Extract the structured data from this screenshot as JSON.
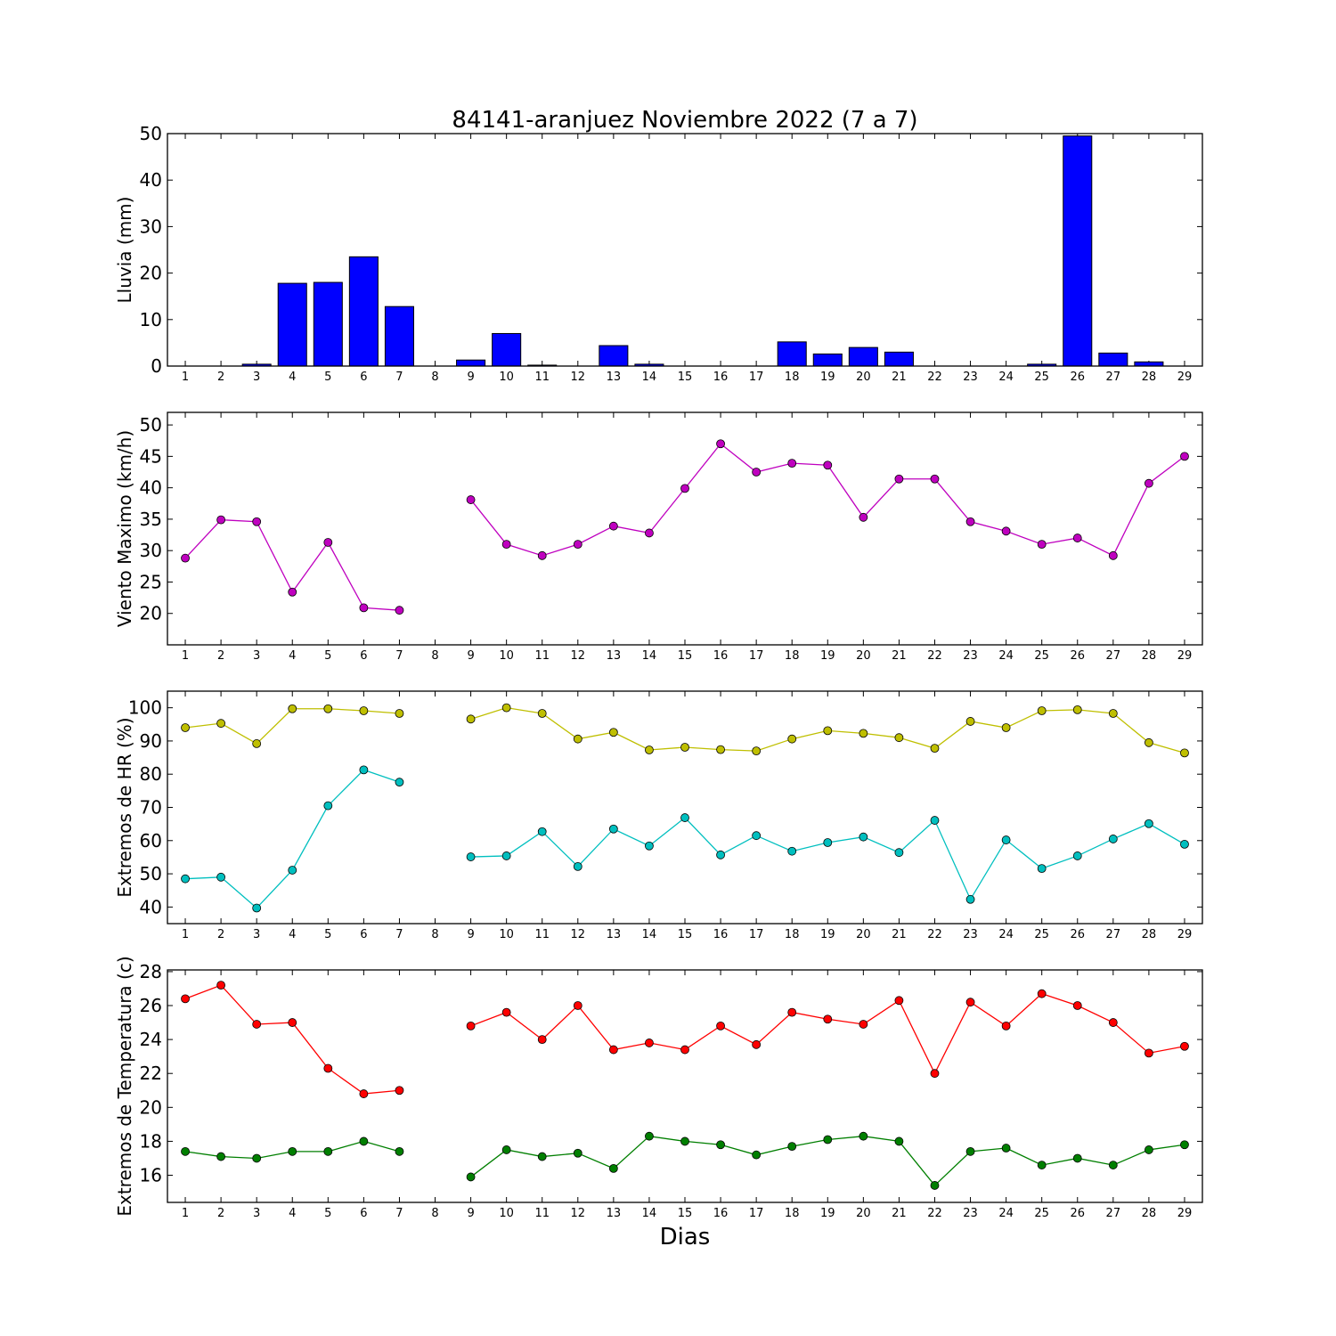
{
  "title": "84141-aranjuez Noviembre 2022  (7 a 7)",
  "xlabel": "Dias",
  "chart_data": [
    {
      "type": "bar",
      "ylabel": "Lluvia (mm)",
      "ylim": [
        0,
        50
      ],
      "yticks": [
        0,
        10,
        20,
        30,
        40,
        50
      ],
      "categories": [
        1,
        2,
        3,
        4,
        5,
        6,
        7,
        8,
        9,
        10,
        11,
        12,
        13,
        14,
        15,
        16,
        17,
        18,
        19,
        20,
        21,
        22,
        23,
        24,
        25,
        26,
        27,
        28,
        29
      ],
      "series": [
        {
          "color": "#0000ff",
          "values": [
            0,
            0,
            0.4,
            17.8,
            18.0,
            23.5,
            12.8,
            null,
            1.3,
            7.0,
            0.2,
            0,
            4.4,
            0.4,
            0,
            0,
            0,
            5.2,
            2.6,
            4.0,
            3.0,
            0,
            0,
            0,
            0.4,
            49.5,
            2.8,
            0.9,
            null
          ]
        }
      ]
    },
    {
      "type": "line",
      "ylabel": "Viento Maximo (km/h)",
      "ylim": [
        15,
        52
      ],
      "yticks": [
        20,
        25,
        30,
        35,
        40,
        45,
        50
      ],
      "categories": [
        1,
        2,
        3,
        4,
        5,
        6,
        7,
        8,
        9,
        10,
        11,
        12,
        13,
        14,
        15,
        16,
        17,
        18,
        19,
        20,
        21,
        22,
        23,
        24,
        25,
        26,
        27,
        28,
        29
      ],
      "series": [
        {
          "color": "#bf00bf",
          "values": [
            28.8,
            34.9,
            34.6,
            23.4,
            31.3,
            20.9,
            20.5,
            null,
            38.1,
            31.0,
            29.2,
            31.0,
            33.9,
            32.8,
            39.9,
            47.0,
            42.5,
            43.9,
            43.6,
            35.3,
            41.4,
            41.4,
            34.6,
            33.1,
            31.0,
            32.0,
            29.2,
            40.7,
            45.0
          ]
        }
      ]
    },
    {
      "type": "line",
      "ylabel": "Extremos de HR (%)",
      "ylim": [
        35,
        105
      ],
      "yticks": [
        40,
        50,
        60,
        70,
        80,
        90,
        100
      ],
      "categories": [
        1,
        2,
        3,
        4,
        5,
        6,
        7,
        8,
        9,
        10,
        11,
        12,
        13,
        14,
        15,
        16,
        17,
        18,
        19,
        20,
        21,
        22,
        23,
        24,
        25,
        26,
        27,
        28,
        29
      ],
      "series": [
        {
          "color": "#bfbf00",
          "values": [
            94,
            95.3,
            89.2,
            99.7,
            99.7,
            99.1,
            98.3,
            null,
            96.6,
            100,
            98.3,
            90.6,
            92.6,
            87.3,
            88.1,
            87.4,
            87,
            90.6,
            93.1,
            92.3,
            91,
            87.8,
            95.9,
            94,
            99.1,
            99.4,
            98.3,
            89.5,
            86.4
          ]
        },
        {
          "color": "#00bfbf",
          "values": [
            48.5,
            49,
            39.7,
            51.1,
            70.5,
            81.3,
            77.6,
            null,
            55.1,
            55.4,
            62.7,
            52.2,
            63.5,
            58.4,
            66.9,
            55.7,
            61.5,
            56.8,
            59.4,
            61.1,
            56.4,
            66.1,
            42.3,
            60.2,
            51.6,
            55.4,
            60.5,
            65.1,
            58.9
          ]
        }
      ]
    },
    {
      "type": "line",
      "ylabel": "Extremos de Temperatura (c)",
      "ylim": [
        14.4,
        28.1
      ],
      "yticks": [
        16,
        18,
        20,
        22,
        24,
        26,
        28
      ],
      "categories": [
        1,
        2,
        3,
        4,
        5,
        6,
        7,
        8,
        9,
        10,
        11,
        12,
        13,
        14,
        15,
        16,
        17,
        18,
        19,
        20,
        21,
        22,
        23,
        24,
        25,
        26,
        27,
        28,
        29
      ],
      "series": [
        {
          "color": "#ff0000",
          "values": [
            26.4,
            27.2,
            24.9,
            25.0,
            22.3,
            20.8,
            21.0,
            null,
            24.8,
            25.6,
            24.0,
            26.0,
            23.4,
            23.8,
            23.4,
            24.8,
            23.7,
            25.6,
            25.2,
            24.9,
            26.3,
            22.0,
            26.2,
            24.8,
            26.7,
            26.0,
            25.0,
            23.2,
            23.6
          ]
        },
        {
          "color": "#007f00",
          "values": [
            17.4,
            17.1,
            17.0,
            17.4,
            17.4,
            18.0,
            17.4,
            null,
            15.9,
            17.5,
            17.1,
            17.3,
            16.4,
            18.3,
            18.0,
            17.8,
            17.2,
            17.7,
            18.1,
            18.3,
            18.0,
            15.4,
            17.4,
            17.6,
            16.6,
            17.0,
            16.6,
            17.5,
            17.8
          ]
        }
      ]
    }
  ]
}
